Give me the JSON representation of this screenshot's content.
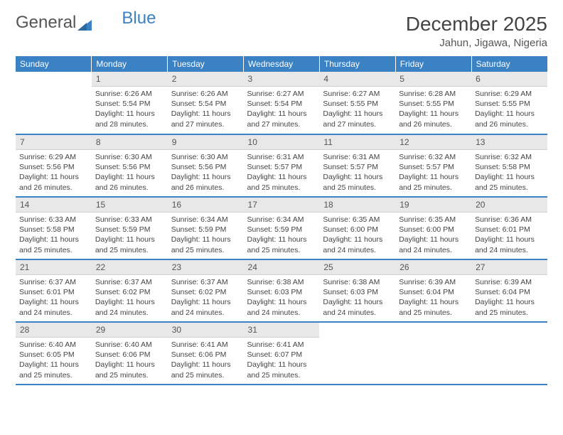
{
  "logo": {
    "text1": "General",
    "text2": "Blue"
  },
  "title": "December 2025",
  "location": "Jahun, Jigawa, Nigeria",
  "colors": {
    "header_bg": "#3b82c4",
    "header_text": "#ffffff",
    "daynum_bg": "#e8e8e8",
    "text": "#444444",
    "row_divider": "#3b82c4"
  },
  "typography": {
    "title_fontsize": 28,
    "location_fontsize": 15,
    "dayheader_fontsize": 12,
    "daynum_fontsize": 12,
    "body_fontsize": 10.5
  },
  "layout": {
    "cols": 7,
    "rows": 5,
    "col_width_pct": 14.28
  },
  "day_headers": [
    "Sunday",
    "Monday",
    "Tuesday",
    "Wednesday",
    "Thursday",
    "Friday",
    "Saturday"
  ],
  "weeks": [
    [
      {
        "empty": true
      },
      {
        "n": "1",
        "sunrise": "6:26 AM",
        "sunset": "5:54 PM",
        "daylight": "11 hours and 28 minutes."
      },
      {
        "n": "2",
        "sunrise": "6:26 AM",
        "sunset": "5:54 PM",
        "daylight": "11 hours and 27 minutes."
      },
      {
        "n": "3",
        "sunrise": "6:27 AM",
        "sunset": "5:54 PM",
        "daylight": "11 hours and 27 minutes."
      },
      {
        "n": "4",
        "sunrise": "6:27 AM",
        "sunset": "5:55 PM",
        "daylight": "11 hours and 27 minutes."
      },
      {
        "n": "5",
        "sunrise": "6:28 AM",
        "sunset": "5:55 PM",
        "daylight": "11 hours and 26 minutes."
      },
      {
        "n": "6",
        "sunrise": "6:29 AM",
        "sunset": "5:55 PM",
        "daylight": "11 hours and 26 minutes."
      }
    ],
    [
      {
        "n": "7",
        "sunrise": "6:29 AM",
        "sunset": "5:56 PM",
        "daylight": "11 hours and 26 minutes."
      },
      {
        "n": "8",
        "sunrise": "6:30 AM",
        "sunset": "5:56 PM",
        "daylight": "11 hours and 26 minutes."
      },
      {
        "n": "9",
        "sunrise": "6:30 AM",
        "sunset": "5:56 PM",
        "daylight": "11 hours and 26 minutes."
      },
      {
        "n": "10",
        "sunrise": "6:31 AM",
        "sunset": "5:57 PM",
        "daylight": "11 hours and 25 minutes."
      },
      {
        "n": "11",
        "sunrise": "6:31 AM",
        "sunset": "5:57 PM",
        "daylight": "11 hours and 25 minutes."
      },
      {
        "n": "12",
        "sunrise": "6:32 AM",
        "sunset": "5:57 PM",
        "daylight": "11 hours and 25 minutes."
      },
      {
        "n": "13",
        "sunrise": "6:32 AM",
        "sunset": "5:58 PM",
        "daylight": "11 hours and 25 minutes."
      }
    ],
    [
      {
        "n": "14",
        "sunrise": "6:33 AM",
        "sunset": "5:58 PM",
        "daylight": "11 hours and 25 minutes."
      },
      {
        "n": "15",
        "sunrise": "6:33 AM",
        "sunset": "5:59 PM",
        "daylight": "11 hours and 25 minutes."
      },
      {
        "n": "16",
        "sunrise": "6:34 AM",
        "sunset": "5:59 PM",
        "daylight": "11 hours and 25 minutes."
      },
      {
        "n": "17",
        "sunrise": "6:34 AM",
        "sunset": "5:59 PM",
        "daylight": "11 hours and 25 minutes."
      },
      {
        "n": "18",
        "sunrise": "6:35 AM",
        "sunset": "6:00 PM",
        "daylight": "11 hours and 24 minutes."
      },
      {
        "n": "19",
        "sunrise": "6:35 AM",
        "sunset": "6:00 PM",
        "daylight": "11 hours and 24 minutes."
      },
      {
        "n": "20",
        "sunrise": "6:36 AM",
        "sunset": "6:01 PM",
        "daylight": "11 hours and 24 minutes."
      }
    ],
    [
      {
        "n": "21",
        "sunrise": "6:37 AM",
        "sunset": "6:01 PM",
        "daylight": "11 hours and 24 minutes."
      },
      {
        "n": "22",
        "sunrise": "6:37 AM",
        "sunset": "6:02 PM",
        "daylight": "11 hours and 24 minutes."
      },
      {
        "n": "23",
        "sunrise": "6:37 AM",
        "sunset": "6:02 PM",
        "daylight": "11 hours and 24 minutes."
      },
      {
        "n": "24",
        "sunrise": "6:38 AM",
        "sunset": "6:03 PM",
        "daylight": "11 hours and 24 minutes."
      },
      {
        "n": "25",
        "sunrise": "6:38 AM",
        "sunset": "6:03 PM",
        "daylight": "11 hours and 24 minutes."
      },
      {
        "n": "26",
        "sunrise": "6:39 AM",
        "sunset": "6:04 PM",
        "daylight": "11 hours and 25 minutes."
      },
      {
        "n": "27",
        "sunrise": "6:39 AM",
        "sunset": "6:04 PM",
        "daylight": "11 hours and 25 minutes."
      }
    ],
    [
      {
        "n": "28",
        "sunrise": "6:40 AM",
        "sunset": "6:05 PM",
        "daylight": "11 hours and 25 minutes."
      },
      {
        "n": "29",
        "sunrise": "6:40 AM",
        "sunset": "6:06 PM",
        "daylight": "11 hours and 25 minutes."
      },
      {
        "n": "30",
        "sunrise": "6:41 AM",
        "sunset": "6:06 PM",
        "daylight": "11 hours and 25 minutes."
      },
      {
        "n": "31",
        "sunrise": "6:41 AM",
        "sunset": "6:07 PM",
        "daylight": "11 hours and 25 minutes."
      },
      {
        "empty": true
      },
      {
        "empty": true
      },
      {
        "empty": true
      }
    ]
  ],
  "labels": {
    "sunrise": "Sunrise: ",
    "sunset": "Sunset: ",
    "daylight": "Daylight: "
  }
}
